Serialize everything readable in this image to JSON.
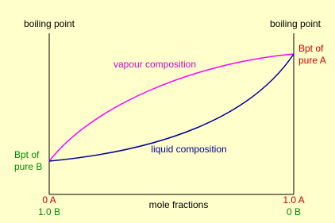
{
  "axes": {
    "left_label": "boiling point",
    "right_label": "boiling point",
    "x_label": "mole fractions",
    "left_end": {
      "a": "0 A",
      "b": "1.0 B"
    },
    "right_end": {
      "a": "1.0 A",
      "b": "0 B"
    }
  },
  "points": {
    "pure_a": {
      "line1": "Bpt of",
      "line2": "pure A"
    },
    "pure_b": {
      "line1": "Bpt of",
      "line2": "pure B"
    }
  },
  "curves": {
    "vapour": "vapour composition",
    "liquid": "liquid composition"
  }
}
